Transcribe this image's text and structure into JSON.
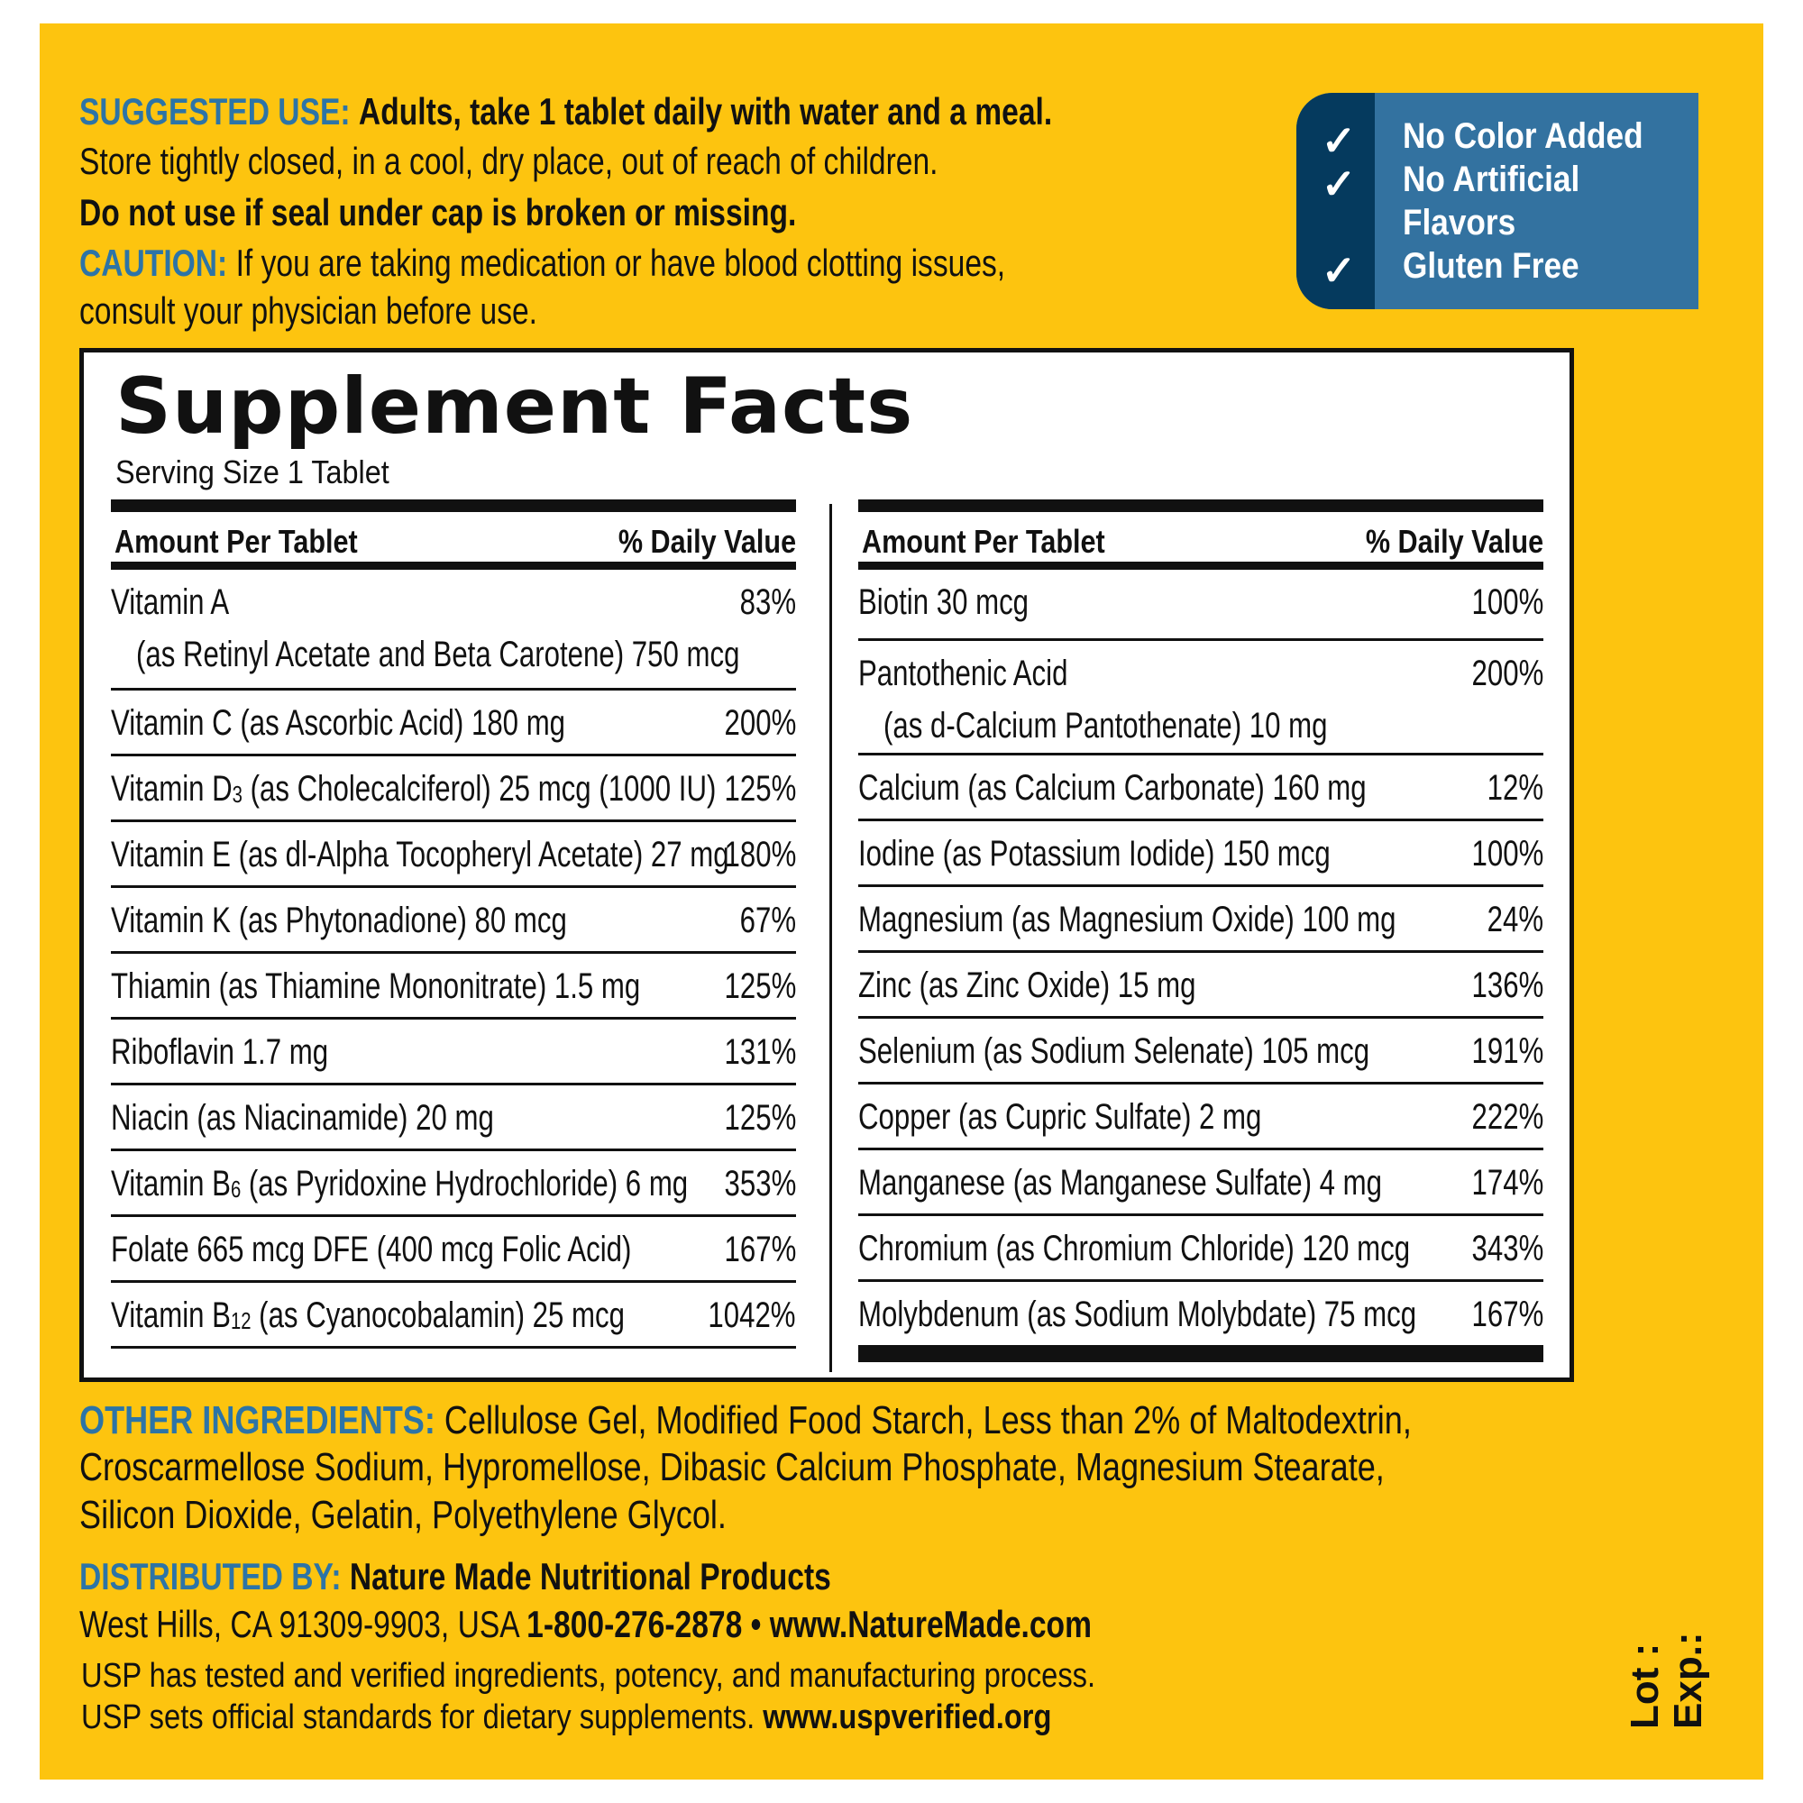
{
  "suggested_use": {
    "label": "SUGGESTED USE:",
    "text": "Adults, take 1 tablet daily with water and a meal.",
    "store": "Store tightly closed, in a cool, dry place, out of reach of children.",
    "seal": "Do not use if seal under cap is broken or missing."
  },
  "caution": {
    "label": "CAUTION:",
    "text": "If you are taking medication or have blood clotting issues,",
    "text2": "consult your physician before use."
  },
  "badge": {
    "items": [
      "No Color Added",
      "No Artificial",
      "Flavors",
      "Gluten Free"
    ],
    "check": "✓",
    "colors": {
      "dark": "#053A5E",
      "light": "#3372A0"
    }
  },
  "facts": {
    "title": "Supplement Facts",
    "serving": "Serving Size 1 Tablet",
    "header_amount": "Amount Per Tablet",
    "header_dv": "% Daily Value",
    "left": [
      {
        "name": "Vitamin A",
        "sub": "",
        "detail": "",
        "line2": "(as Retinyl Acetate and Beta Carotene)  750 mcg",
        "dv": "83%"
      },
      {
        "name": "Vitamin C",
        "sub": "",
        "detail": " (as Ascorbic Acid)  180 mg",
        "dv": "200%"
      },
      {
        "name": "Vitamin D",
        "sub": "3",
        "detail": " (as Cholecalciferol)  25 mcg (1000 IU)",
        "dv": "125%"
      },
      {
        "name": "Vitamin E",
        "sub": "",
        "detail": " (as dl-Alpha Tocopheryl Acetate)  27 mg",
        "dv": "180%"
      },
      {
        "name": "Vitamin K",
        "sub": "",
        "detail": " (as Phytonadione)  80 mcg",
        "dv": "67%"
      },
      {
        "name": "Thiamin",
        "sub": "",
        "detail": " (as Thiamine Mononitrate)  1.5 mg",
        "dv": "125%"
      },
      {
        "name": "Riboflavin",
        "sub": "",
        "detail": "  1.7 mg",
        "dv": "131%"
      },
      {
        "name": "Niacin",
        "sub": "",
        "detail": " (as Niacinamide)  20 mg",
        "dv": "125%"
      },
      {
        "name": "Vitamin B",
        "sub": "6",
        "detail": " (as Pyridoxine Hydrochloride)  6 mg",
        "dv": "353%"
      },
      {
        "name": "Folate",
        "sub": "",
        "detail": "  665 mcg DFE (400 mcg Folic Acid)",
        "dv": "167%"
      },
      {
        "name": "Vitamin B",
        "sub": "12",
        "detail": " (as Cyanocobalamin)  25 mcg",
        "dv": "1042%"
      }
    ],
    "right": [
      {
        "name": "Biotin",
        "sub": "",
        "detail": "  30 mcg",
        "line2": "",
        "dv": "100%"
      },
      {
        "name": "Pantothenic Acid",
        "sub": "",
        "detail": "",
        "line2": "(as d-Calcium Pantothenate)  10 mg",
        "dv": "200%"
      },
      {
        "name": "Calcium",
        "sub": "",
        "detail": " (as Calcium Carbonate)  160 mg",
        "dv": "12%"
      },
      {
        "name": "Iodine",
        "sub": "",
        "detail": " (as Potassium Iodide)  150 mcg",
        "dv": "100%"
      },
      {
        "name": "Magnesium",
        "sub": "",
        "detail": " (as Magnesium Oxide)  100 mg",
        "dv": "24%"
      },
      {
        "name": "Zinc",
        "sub": "",
        "detail": " (as Zinc Oxide)  15 mg",
        "dv": "136%"
      },
      {
        "name": "Selenium",
        "sub": "",
        "detail": " (as Sodium Selenate)  105 mcg",
        "dv": "191%"
      },
      {
        "name": "Copper",
        "sub": "",
        "detail": " (as Cupric Sulfate)  2 mg",
        "dv": "222%"
      },
      {
        "name": "Manganese",
        "sub": "",
        "detail": " (as Manganese Sulfate)  4 mg",
        "dv": "174%"
      },
      {
        "name": "Chromium",
        "sub": "",
        "detail": " (as Chromium Chloride)  120 mcg",
        "dv": "343%"
      },
      {
        "name": "Molybdenum",
        "sub": "",
        "detail": " (as Sodium Molybdate)  75 mcg",
        "dv": "167%"
      }
    ]
  },
  "other": {
    "label": "OTHER INGREDIENTS:",
    "line1": "Cellulose Gel, Modified Food Starch, Less than 2% of Maltodextrin,",
    "line2": "Croscarmellose Sodium, Hypromellose, Dibasic Calcium Phosphate, Magnesium Stearate,",
    "line3": "Silicon Dioxide, Gelatin, Polyethylene Glycol."
  },
  "distributed": {
    "label": "DISTRIBUTED BY:",
    "company": "Nature Made Nutritional Products",
    "address": "West Hills, CA 91309-9903, USA",
    "phone": "1-800-276-2878",
    "sep": " • ",
    "website": "www.NatureMade.com"
  },
  "usp": {
    "line1": "USP has tested and verified ingredients, potency, and manufacturing process.",
    "line2": "USP sets official standards for dietary supplements.",
    "link": "www.uspverified.org"
  },
  "lot": "Lot :",
  "exp": "Exp.:",
  "colors": {
    "background": "#FDC40F",
    "label_blue": "#2D74A6"
  }
}
